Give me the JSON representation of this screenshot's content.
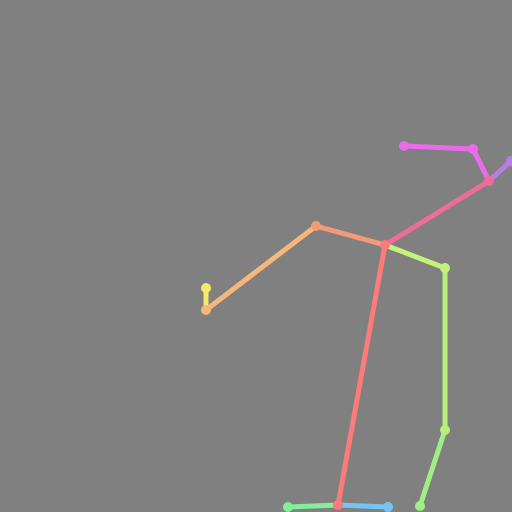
{
  "image": {
    "kind": "pose-skeleton",
    "background_color": "#808080"
  },
  "skeleton": {
    "limbs": [
      {
        "name": "limb-head-top",
        "color": "#e96de9"
      },
      {
        "name": "limb-head-right",
        "color": "#e96de9"
      },
      {
        "name": "limb-head-corner",
        "color": "#b97ce8"
      },
      {
        "name": "limb-neck-upper",
        "color": "#f06a9a"
      },
      {
        "name": "limb-neck-lower",
        "color": "#f07a8a"
      },
      {
        "name": "limb-shoulder-left",
        "color": "#f59a78"
      },
      {
        "name": "limb-upper-arm-left",
        "color": "#f6b77a"
      },
      {
        "name": "limb-lower-arm-left",
        "color": "#f4e96a"
      },
      {
        "name": "limb-shoulder-right",
        "color": "#c4f27a"
      },
      {
        "name": "limb-upper-arm-right",
        "color": "#b8ef7a"
      },
      {
        "name": "limb-lower-arm-right",
        "color": "#9fef86"
      },
      {
        "name": "limb-torso",
        "color": "#ff7a7a"
      },
      {
        "name": "limb-foot-left",
        "color": "#84ee99"
      },
      {
        "name": "limb-foot-right",
        "color": "#74c6f2"
      }
    ],
    "joints": [
      {
        "name": "joint-head-top-left",
        "color": "#e96de9"
      },
      {
        "name": "joint-head-top-right",
        "color": "#e96de9"
      },
      {
        "name": "joint-head-right",
        "color": "#b97ce8"
      },
      {
        "name": "joint-neck",
        "color": "#f06a9a"
      },
      {
        "name": "joint-chest",
        "color": "#ff7a7a"
      },
      {
        "name": "joint-shoulder-left",
        "color": "#f59a78"
      },
      {
        "name": "joint-elbow-left",
        "color": "#f6b77a"
      },
      {
        "name": "joint-hand-left",
        "color": "#f4e96a"
      },
      {
        "name": "joint-shoulder-right",
        "color": "#c4f27a"
      },
      {
        "name": "joint-elbow-right",
        "color": "#b8ef7a"
      },
      {
        "name": "joint-hand-right",
        "color": "#9fef86"
      },
      {
        "name": "joint-pelvis",
        "color": "#ff7a7a"
      },
      {
        "name": "joint-foot-left",
        "color": "#84ee99"
      },
      {
        "name": "joint-foot-right",
        "color": "#74c6f2"
      }
    ]
  }
}
